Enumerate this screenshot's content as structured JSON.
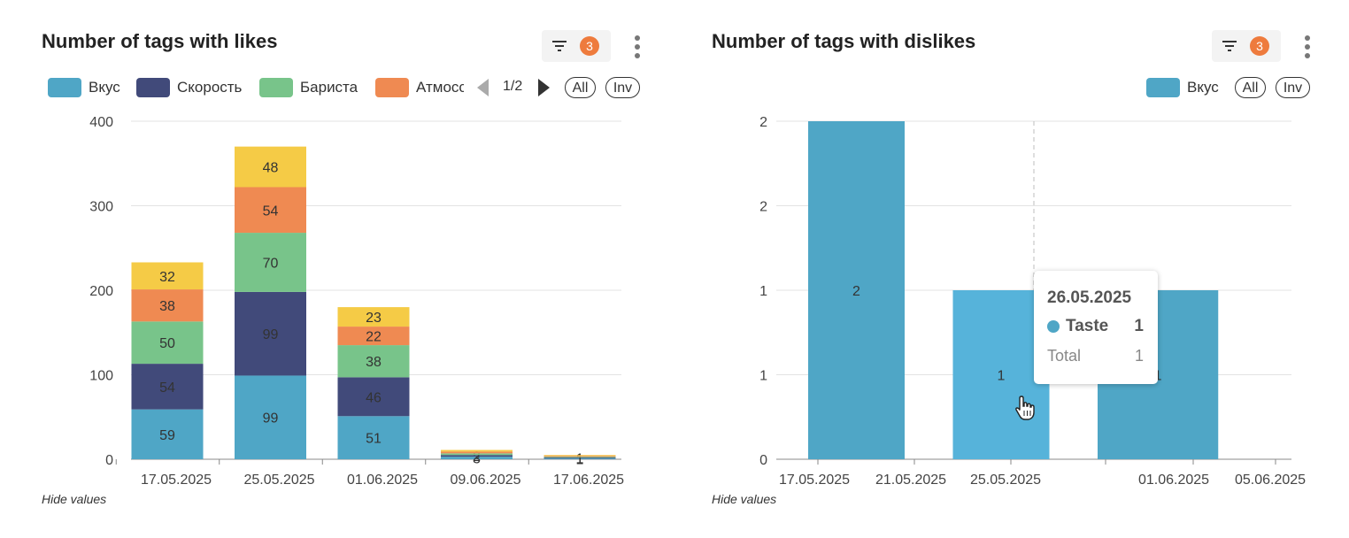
{
  "left": {
    "title": "Number of tags with likes",
    "filter_badge": "3",
    "legend": [
      {
        "label": "Вкус",
        "color": "#4fa6c6"
      },
      {
        "label": "Скорость",
        "color": "#414a7a"
      },
      {
        "label": "Бариста",
        "color": "#78c48a"
      },
      {
        "label": "Атмосс",
        "color": "#ef8a52"
      }
    ],
    "pager": "1/2",
    "all_label": "All",
    "inv_label": "Inv",
    "hide_values": "Hide values"
  },
  "right": {
    "title": "Number of tags with dislikes",
    "filter_badge": "3",
    "legend": [
      {
        "label": "Вкус",
        "color": "#4fa6c6"
      }
    ],
    "all_label": "All",
    "inv_label": "Inv",
    "hide_values": "Hide values",
    "tooltip": {
      "date": "26.05.2025",
      "series": "Taste",
      "value": "1",
      "total_label": "Total",
      "total_value": "1"
    }
  },
  "chart_data": [
    {
      "type": "bar",
      "stacked": true,
      "title": "Number of tags with likes",
      "x_tick_labels": [
        "17.05.2025",
        "25.05.2025",
        "01.06.2025",
        "09.06.2025",
        "17.06.2025"
      ],
      "categories": [
        "17.05.2025",
        "25.05.2025",
        "01.06.2025",
        "09.06.2025",
        "17.06.2025"
      ],
      "ylim": [
        0,
        400
      ],
      "y_ticks": [
        0,
        100,
        200,
        300,
        400
      ],
      "grid": true,
      "series": [
        {
          "name": "Вкус",
          "color": "#4fa6c6",
          "values": [
            59,
            99,
            51,
            3,
            1
          ],
          "labels": [
            "59",
            "99",
            "51",
            "3",
            "1"
          ]
        },
        {
          "name": "Скорость",
          "color": "#414a7a",
          "values": [
            54,
            99,
            46,
            2,
            1
          ],
          "labels": [
            "54",
            "99",
            "46",
            "2",
            "1"
          ]
        },
        {
          "name": "Бариста",
          "color": "#78c48a",
          "values": [
            50,
            70,
            38,
            2,
            1
          ],
          "labels": [
            "50",
            "70",
            "38",
            "",
            ""
          ]
        },
        {
          "name": "Атмосс",
          "color": "#ef8a52",
          "values": [
            38,
            54,
            22,
            2,
            1
          ],
          "labels": [
            "38",
            "54",
            "22",
            "",
            ""
          ]
        },
        {
          "name": "",
          "color": "#f5cb46",
          "values": [
            32,
            48,
            23,
            2,
            1
          ],
          "labels": [
            "32",
            "48",
            "23",
            "",
            ""
          ]
        }
      ]
    },
    {
      "type": "bar",
      "title": "Number of tags with dislikes",
      "x_tick_labels": [
        "17.05.2025",
        "21.05.2025",
        "25.05.2025",
        "01.06.2025",
        "05.06.2025"
      ],
      "bars": [
        {
          "start": "17.05.2025",
          "end": "21.05.2025",
          "value": 2,
          "label": "2",
          "highlighted": false
        },
        {
          "start": "23.05.2025",
          "end": "27.05.2025",
          "value": 1,
          "label": "1",
          "highlighted": true
        },
        {
          "start": "29.05.2025",
          "end": "03.06.2025",
          "value": 1,
          "label": "1",
          "highlighted": false
        }
      ],
      "ylim": [
        0,
        2
      ],
      "y_tick_labels": [
        "0",
        "1",
        "1",
        "2",
        "2"
      ],
      "grid": true,
      "series": [
        {
          "name": "Вкус",
          "color": "#4fa6c6",
          "highlight_color": "#56b3da"
        }
      ]
    }
  ]
}
